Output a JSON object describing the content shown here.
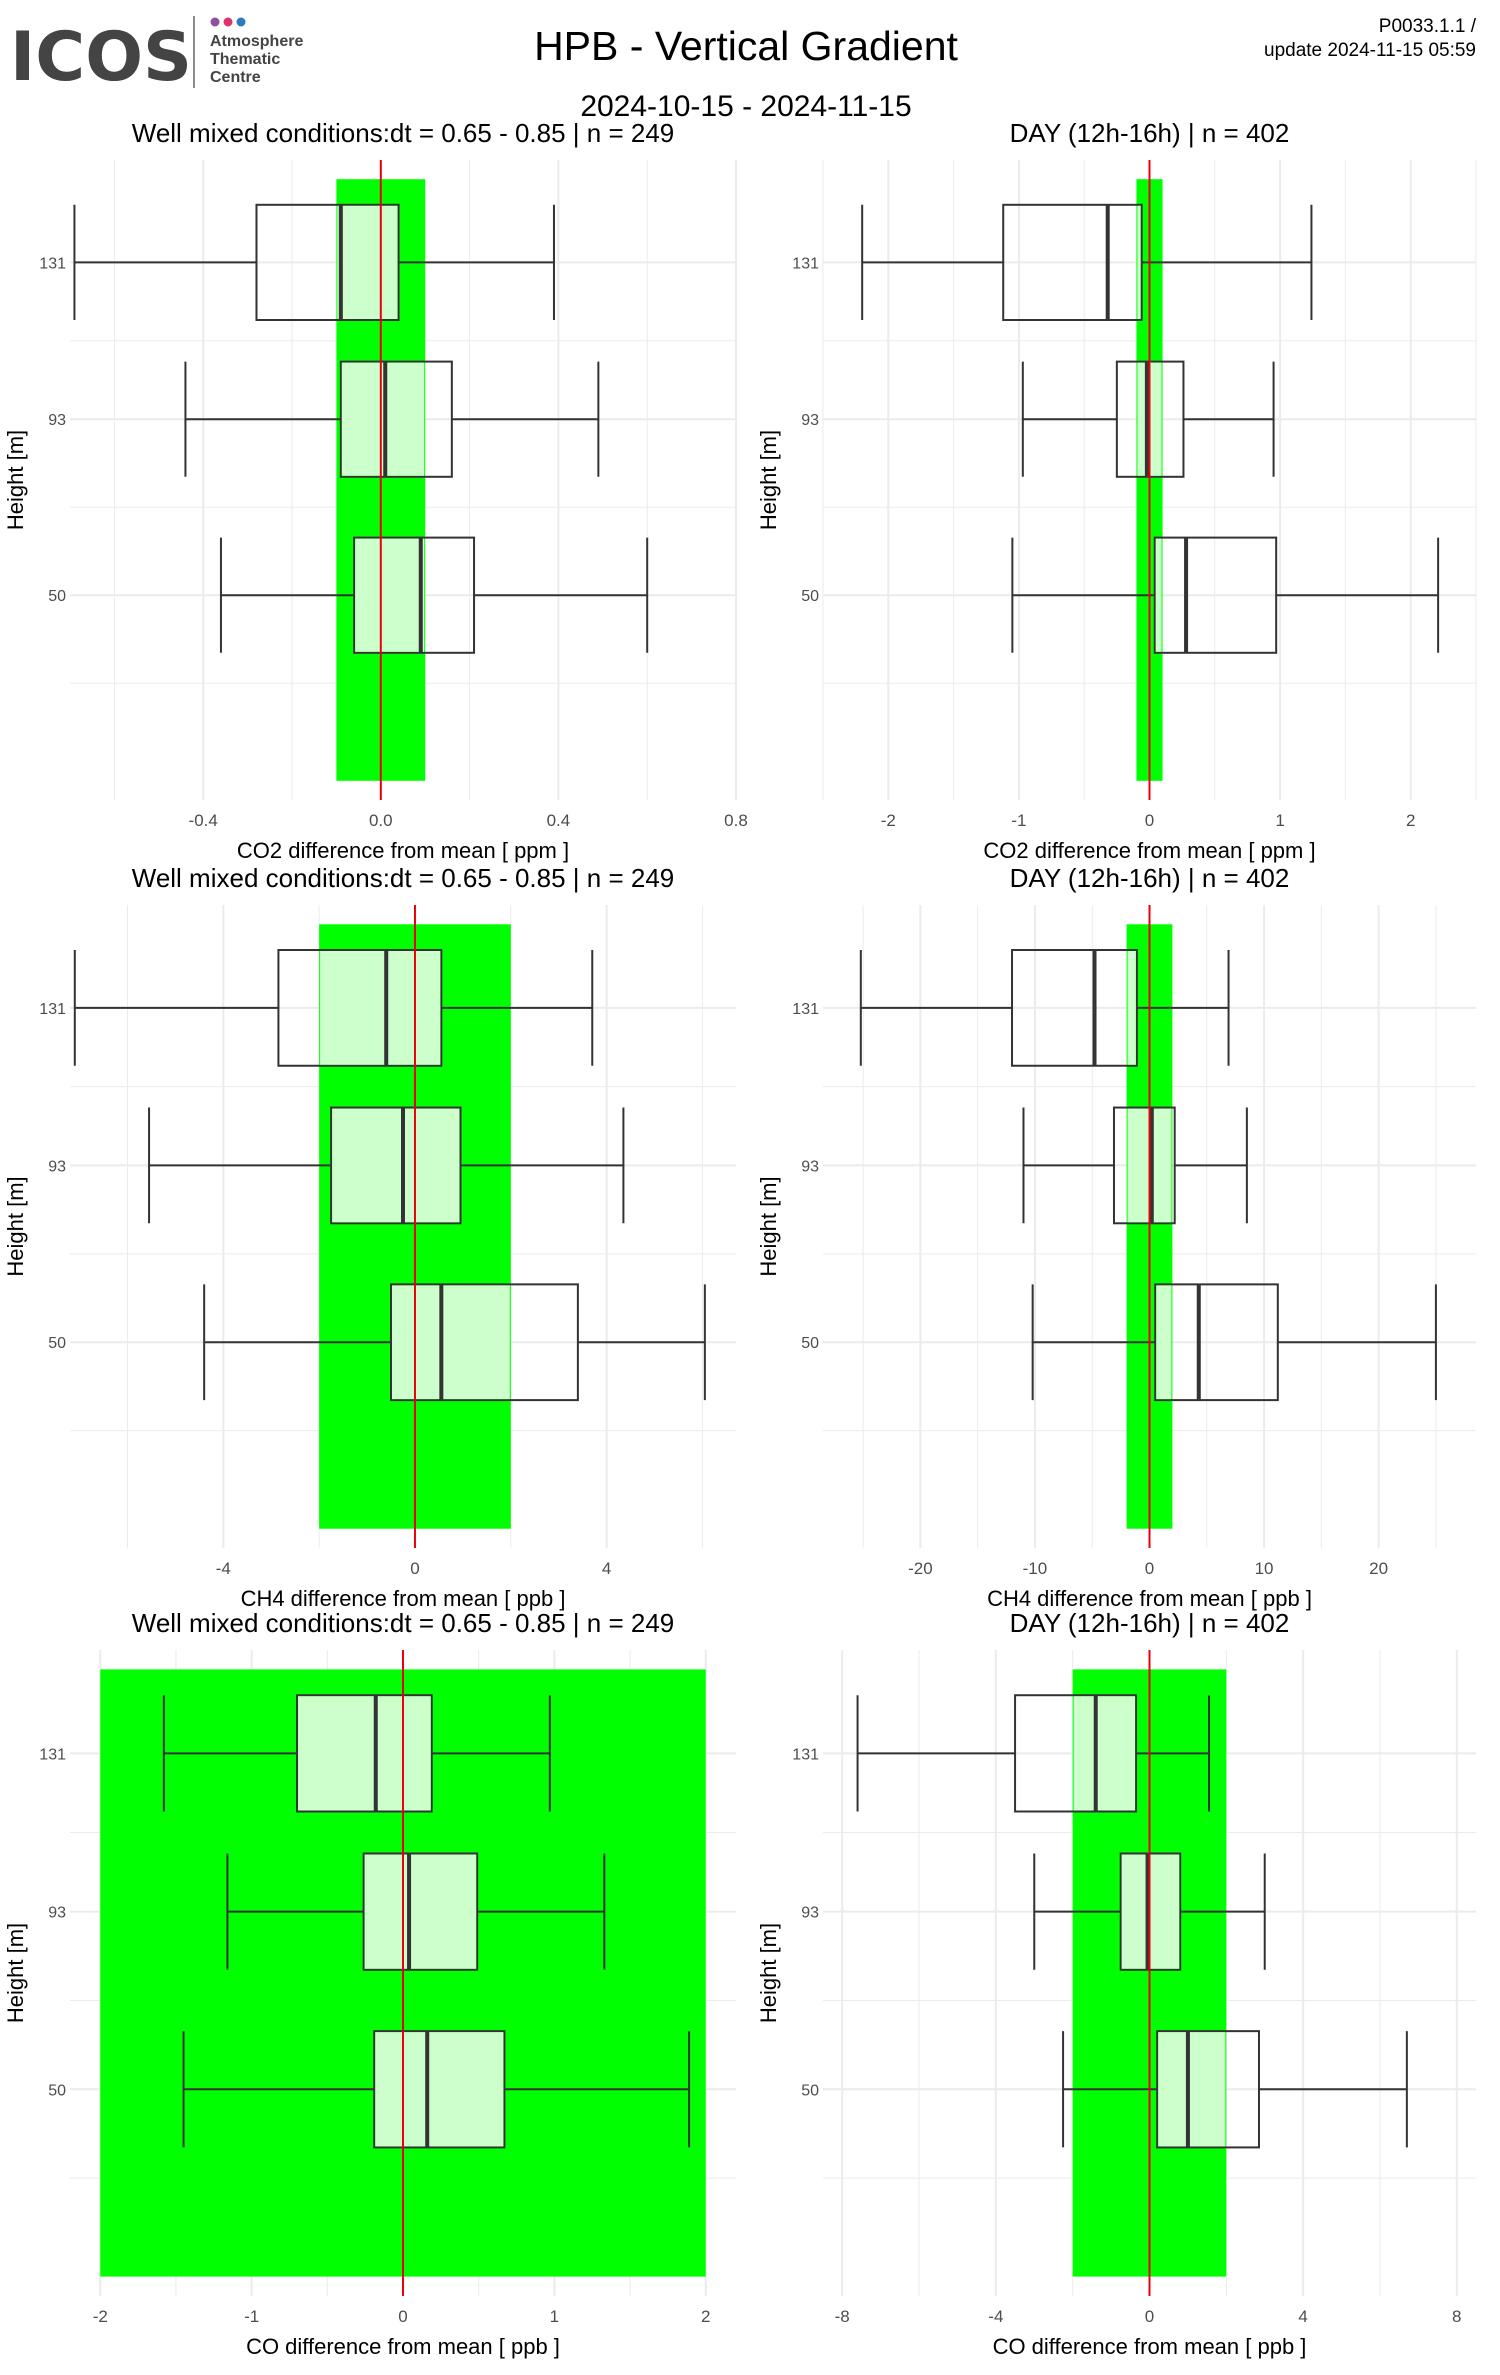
{
  "header": {
    "logo_wordmark": "ICOS",
    "logo_dots": [
      "#8e4fa0",
      "#e0316d",
      "#2b7bbf"
    ],
    "logo_sub": [
      "Atmosphere",
      "Thematic",
      "Centre"
    ],
    "title": "HPB - Vertical Gradient",
    "date_range": "2024-10-15 - 2024-11-15",
    "code": "P0033.1.1 /",
    "update": "update  2024-11-15 05:59"
  },
  "colors": {
    "band": "#00ff00",
    "box_fill": "#ccffcc",
    "zero_line": "#e8000b",
    "box_stroke": "#333333",
    "grid": "#ebebeb"
  },
  "chart_data": [
    {
      "type": "box",
      "title": "Well mixed conditions:dt = 0.65 - 0.85 | n = 249",
      "xlabel": "CO2  difference from mean [ ppm ]",
      "ylabel": "Height [m]",
      "xlim": [
        -0.7,
        0.8
      ],
      "xticks": [
        -0.4,
        0.0,
        0.4,
        0.8
      ],
      "xtick_labels": [
        "-0.4",
        "0.0",
        "0.4",
        "0.8"
      ],
      "band": [
        -0.1,
        0.1
      ],
      "categories": [
        "131",
        "93",
        "50"
      ],
      "boxes": [
        {
          "height": "131",
          "whisker_low": -0.69,
          "q1": -0.28,
          "median": -0.09,
          "q3": 0.04,
          "whisker_high": 0.39
        },
        {
          "height": "93",
          "whisker_low": -0.44,
          "q1": -0.09,
          "median": 0.01,
          "q3": 0.16,
          "whisker_high": 0.49
        },
        {
          "height": "50",
          "whisker_low": -0.36,
          "q1": -0.06,
          "median": 0.09,
          "q3": 0.21,
          "whisker_high": 0.6
        }
      ]
    },
    {
      "type": "box",
      "title": "DAY (12h-16h) | n = 402",
      "xlabel": "CO2  difference from mean [ ppm ]",
      "ylabel": "Height [m]",
      "xlim": [
        -2.5,
        2.5
      ],
      "xticks": [
        -2,
        -1,
        0,
        1,
        2
      ],
      "xtick_labels": [
        "-2",
        "-1",
        "0",
        "1",
        "2"
      ],
      "band": [
        -0.1,
        0.1
      ],
      "categories": [
        "131",
        "93",
        "50"
      ],
      "boxes": [
        {
          "height": "131",
          "whisker_low": -2.2,
          "q1": -1.12,
          "median": -0.32,
          "q3": -0.06,
          "whisker_high": 1.24
        },
        {
          "height": "93",
          "whisker_low": -0.97,
          "q1": -0.25,
          "median": -0.02,
          "q3": 0.26,
          "whisker_high": 0.95
        },
        {
          "height": "50",
          "whisker_low": -1.05,
          "q1": 0.04,
          "median": 0.28,
          "q3": 0.97,
          "whisker_high": 2.21
        }
      ]
    },
    {
      "type": "box",
      "title": "Well mixed conditions:dt = 0.65 - 0.85 | n = 249",
      "xlabel": "CH4  difference from mean [ ppb ]",
      "ylabel": "Height [m]",
      "xlim": [
        -7.2,
        6.7
      ],
      "xticks": [
        -4,
        0,
        4
      ],
      "xtick_labels": [
        "-4",
        "0",
        "4"
      ],
      "band": [
        -2,
        2
      ],
      "categories": [
        "131",
        "93",
        "50"
      ],
      "boxes": [
        {
          "height": "131",
          "whisker_low": -7.1,
          "q1": -2.85,
          "median": -0.6,
          "q3": 0.55,
          "whisker_high": 3.7
        },
        {
          "height": "93",
          "whisker_low": -5.55,
          "q1": -1.75,
          "median": -0.25,
          "q3": 0.95,
          "whisker_high": 4.35
        },
        {
          "height": "50",
          "whisker_low": -4.4,
          "q1": -0.5,
          "median": 0.55,
          "q3": 3.4,
          "whisker_high": 6.05
        }
      ]
    },
    {
      "type": "box",
      "title": "DAY (12h-16h) | n = 402",
      "xlabel": "CH4  difference from mean [ ppb ]",
      "ylabel": "Height [m]",
      "xlim": [
        -28.5,
        28.5
      ],
      "xticks": [
        -20,
        -10,
        0,
        10,
        20
      ],
      "xtick_labels": [
        "-20",
        "-10",
        "0",
        "10",
        "20"
      ],
      "band": [
        -2,
        2
      ],
      "categories": [
        "131",
        "93",
        "50"
      ],
      "boxes": [
        {
          "height": "131",
          "whisker_low": -25.2,
          "q1": -12.0,
          "median": -4.8,
          "q3": -1.1,
          "whisker_high": 6.9
        },
        {
          "height": "93",
          "whisker_low": -11.0,
          "q1": -3.1,
          "median": 0.2,
          "q3": 2.2,
          "whisker_high": 8.5
        },
        {
          "height": "50",
          "whisker_low": -10.2,
          "q1": 0.5,
          "median": 4.3,
          "q3": 11.2,
          "whisker_high": 25.0
        }
      ]
    },
    {
      "type": "box",
      "title": "Well mixed conditions:dt = 0.65 - 0.85 | n = 249",
      "xlabel": "CO  difference from mean [ ppb ]",
      "ylabel": "Height [m]",
      "xlim": [
        -2.2,
        2.2
      ],
      "xticks": [
        -2,
        -1,
        0,
        1,
        2
      ],
      "xtick_labels": [
        "-2",
        "-1",
        "0",
        "1",
        "2"
      ],
      "band": [
        -2,
        2
      ],
      "categories": [
        "131",
        "93",
        "50"
      ],
      "boxes": [
        {
          "height": "131",
          "whisker_low": -1.58,
          "q1": -0.7,
          "median": -0.18,
          "q3": 0.19,
          "whisker_high": 0.97
        },
        {
          "height": "93",
          "whisker_low": -1.16,
          "q1": -0.26,
          "median": 0.04,
          "q3": 0.49,
          "whisker_high": 1.33
        },
        {
          "height": "50",
          "whisker_low": -1.45,
          "q1": -0.19,
          "median": 0.16,
          "q3": 0.67,
          "whisker_high": 1.89
        }
      ]
    },
    {
      "type": "box",
      "title": "DAY (12h-16h) | n = 402",
      "xlabel": "CO  difference from mean [ ppb ]",
      "ylabel": "Height [m]",
      "xlim": [
        -8.5,
        8.5
      ],
      "xticks": [
        -8,
        -4,
        0,
        4,
        8
      ],
      "xtick_labels": [
        "-8",
        "-4",
        "0",
        "4",
        "8"
      ],
      "band": [
        -2,
        2
      ],
      "categories": [
        "131",
        "93",
        "50"
      ],
      "boxes": [
        {
          "height": "131",
          "whisker_low": -7.6,
          "q1": -3.5,
          "median": -1.4,
          "q3": -0.35,
          "whisker_high": 1.55
        },
        {
          "height": "93",
          "whisker_low": -3.0,
          "q1": -0.75,
          "median": -0.05,
          "q3": 0.8,
          "whisker_high": 3.0
        },
        {
          "height": "50",
          "whisker_low": -2.25,
          "q1": 0.2,
          "median": 1.0,
          "q3": 2.85,
          "whisker_high": 6.7
        }
      ]
    }
  ]
}
